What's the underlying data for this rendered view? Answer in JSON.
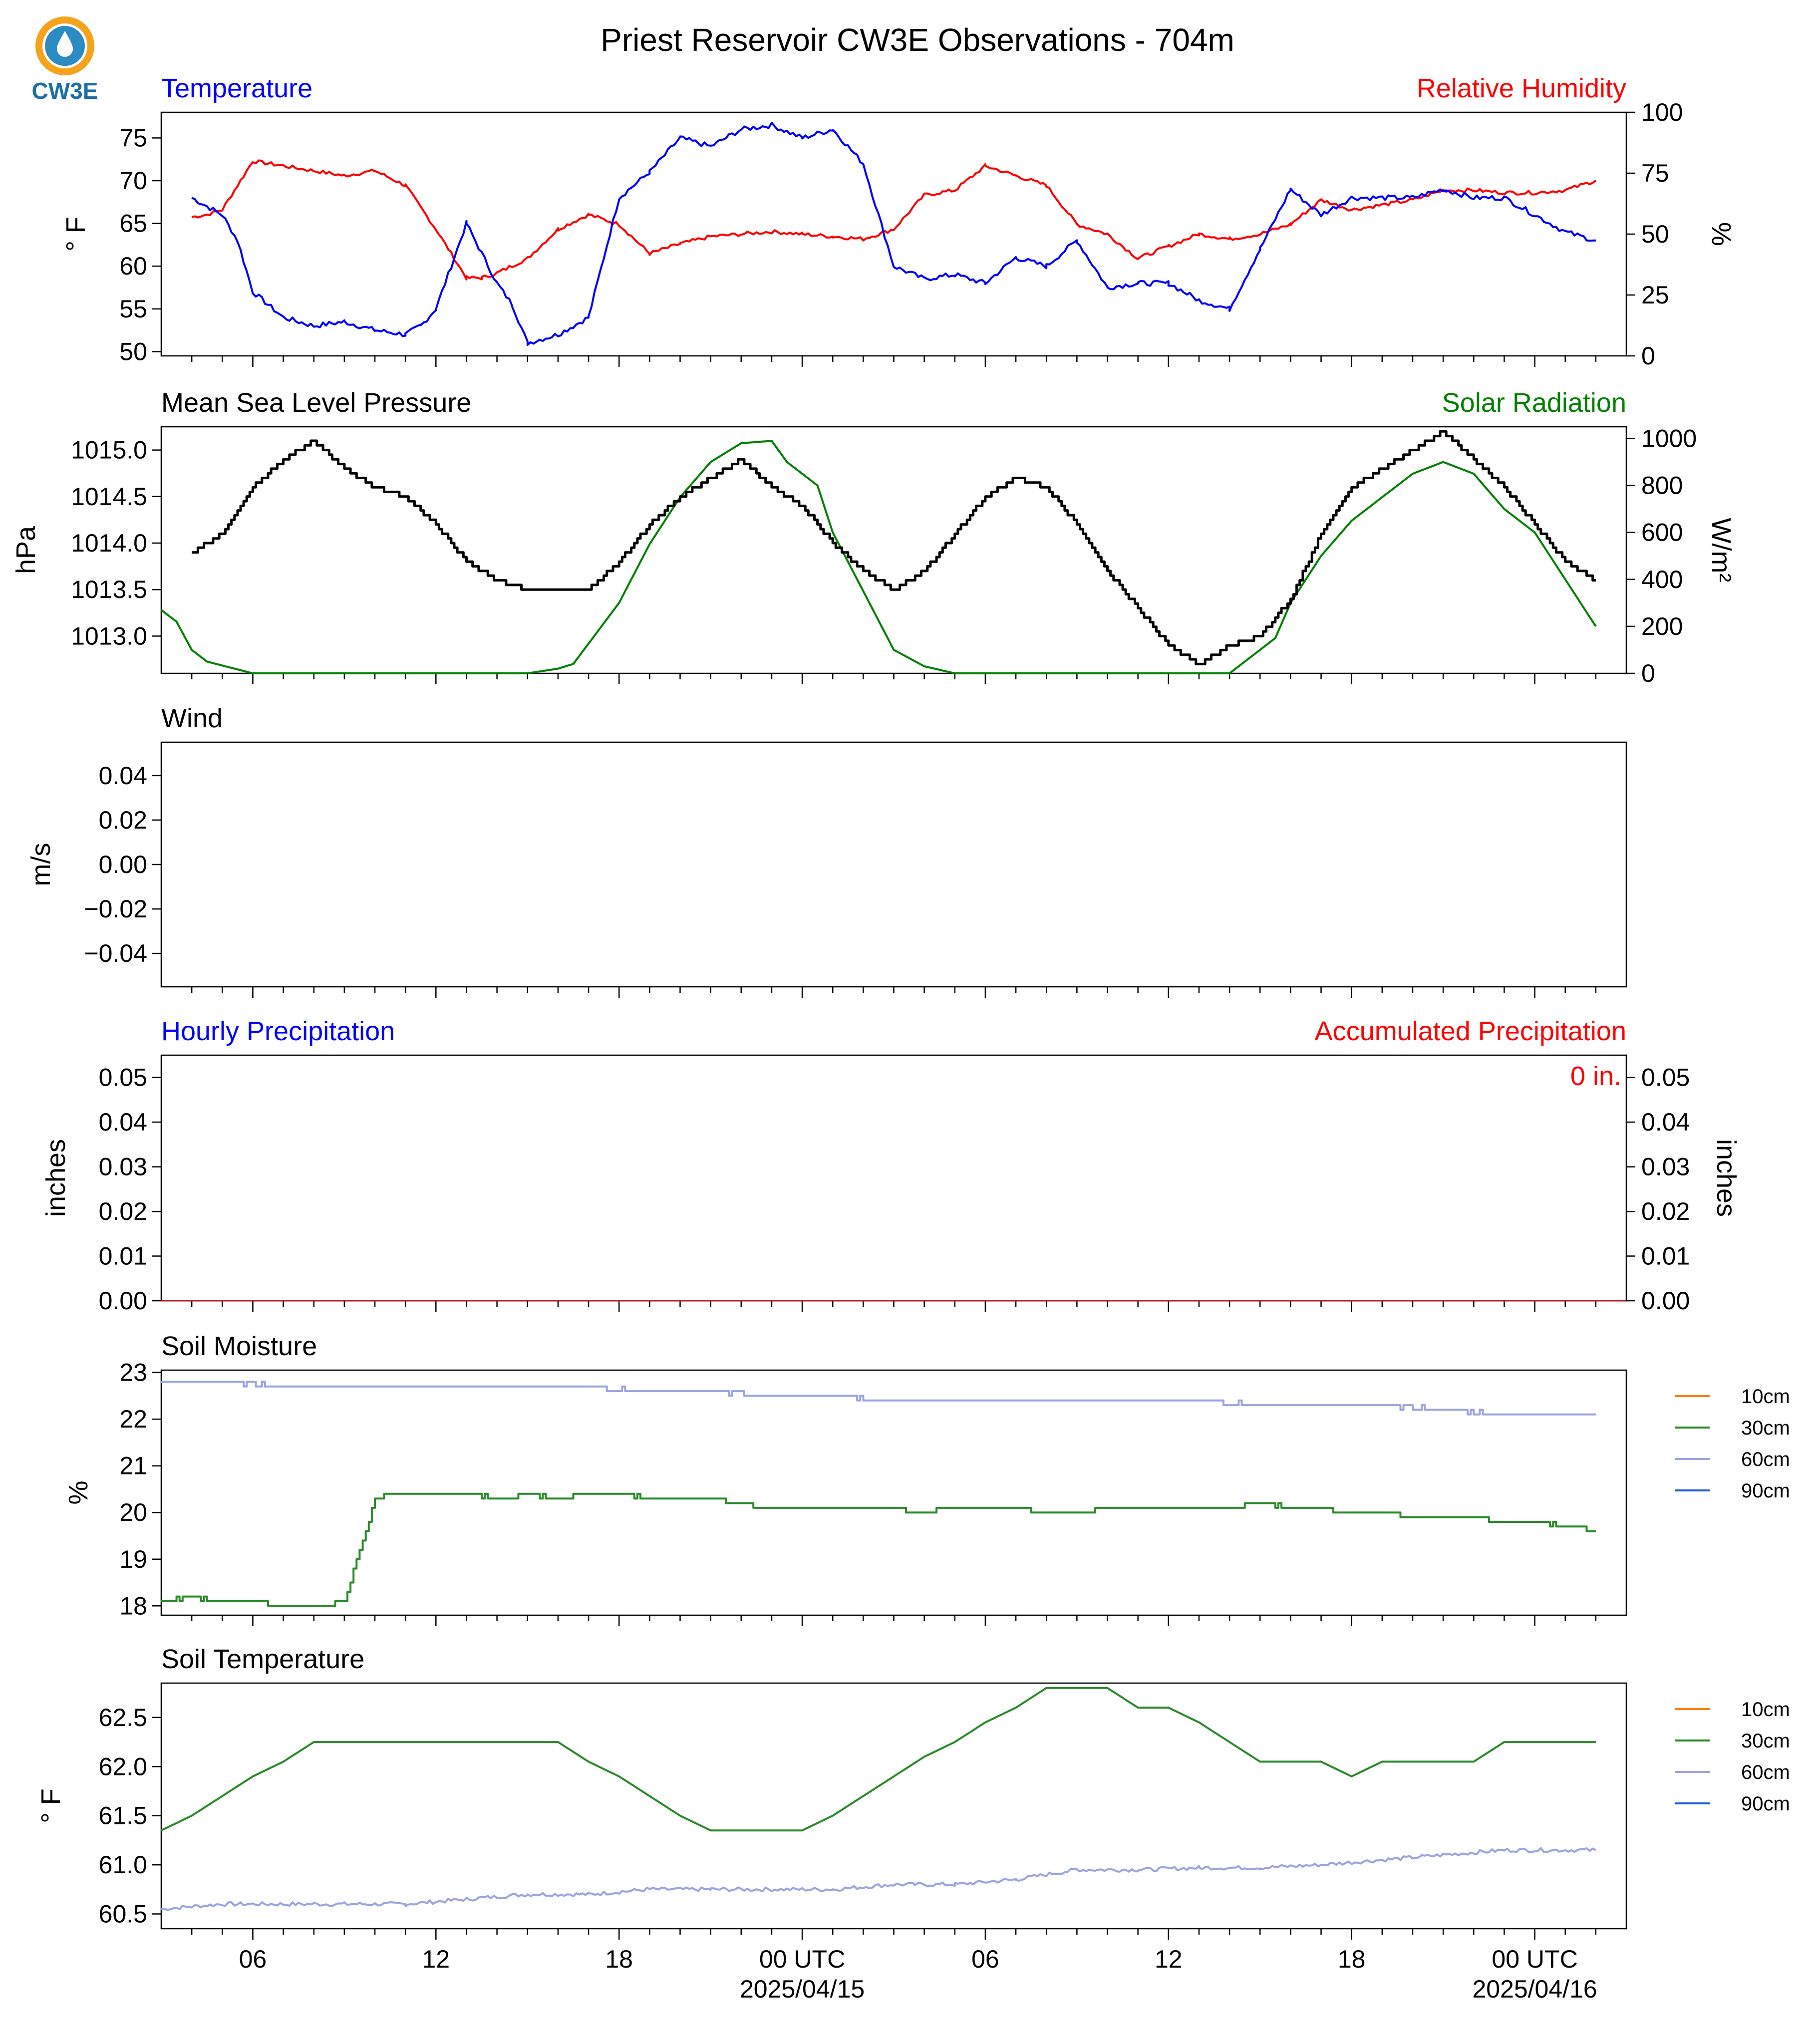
{
  "title": "Priest Reservoir CW3E Observations - 704m",
  "logo": {
    "text": "CW3E",
    "colors": {
      "ring": "#f7a21b",
      "drop": "#1f7fb8",
      "text": "#1b6fa8"
    }
  },
  "x_axis": {
    "range_hours": [
      -21,
      27
    ],
    "ticks": [
      {
        "h": -18,
        "label": "06",
        "sub": ""
      },
      {
        "h": -12,
        "label": "12",
        "sub": ""
      },
      {
        "h": -6,
        "label": "18",
        "sub": ""
      },
      {
        "h": 0,
        "label": "00 UTC",
        "sub": "2025/04/15"
      },
      {
        "h": 6,
        "label": "06",
        "sub": ""
      },
      {
        "h": 12,
        "label": "12",
        "sub": ""
      },
      {
        "h": 18,
        "label": "18",
        "sub": ""
      },
      {
        "h": 24,
        "label": "00 UTC",
        "sub": "2025/04/16"
      }
    ]
  },
  "panels": {
    "temperature": {
      "left_title": "Temperature",
      "right_title": "Relative Humidity",
      "left_ylabel": "° F",
      "right_ylabel": "%",
      "left_ticks": [
        "50",
        "55",
        "60",
        "65",
        "70",
        "75"
      ],
      "right_ticks": [
        "0",
        "25",
        "50",
        "75",
        "100"
      ]
    },
    "pressure": {
      "left_title": "Mean Sea Level Pressure",
      "right_title": "Solar Radiation",
      "left_ylabel": "hPa",
      "right_ylabel": "W/m²",
      "left_ticks": [
        "1013.0",
        "1013.5",
        "1014.0",
        "1014.5",
        "1015.0"
      ],
      "right_ticks": [
        "0",
        "200",
        "400",
        "600",
        "800",
        "1000"
      ]
    },
    "wind": {
      "left_title": "Wind",
      "left_ylabel": "m/s",
      "left_ticks": [
        "−0.04",
        "−0.02",
        "0.00",
        "0.02",
        "0.04"
      ]
    },
    "precip": {
      "left_title": "Hourly Precipitation",
      "right_title": "Accumulated Precipitation",
      "left_ylabel": "inches",
      "right_ylabel": "inches",
      "left_ticks": [
        "0.00",
        "0.01",
        "0.02",
        "0.03",
        "0.04",
        "0.05"
      ],
      "right_ticks": [
        "0.00",
        "0.01",
        "0.02",
        "0.03",
        "0.04",
        "0.05"
      ],
      "total_label": "0 in."
    },
    "soil_moisture": {
      "left_title": "Soil Moisture",
      "left_ylabel": "%",
      "left_ticks": [
        "18",
        "19",
        "20",
        "21",
        "22",
        "23"
      ],
      "legend": [
        "10cm",
        "30cm",
        "60cm",
        "90cm"
      ]
    },
    "soil_temperature": {
      "left_title": "Soil Temperature",
      "left_ylabel": "° F",
      "left_ticks": [
        "60.5",
        "61.0",
        "61.5",
        "62.0",
        "62.5"
      ],
      "legend": [
        "10cm",
        "30cm",
        "60cm",
        "90cm"
      ]
    }
  },
  "colors": {
    "temperature": "#0000ff",
    "humidity": "#ff0000",
    "pressure": "#000000",
    "solar": "#008000",
    "cm10": "#ff7f0e",
    "cm30": "#2a8a2a",
    "cm60": "#9aa4e0",
    "cm90": "#1f5fd6"
  },
  "chart_data": [
    {
      "type": "line",
      "title": "Temperature / Relative Humidity",
      "xlabel": "",
      "ylim_left": [
        49.5,
        78
      ],
      "ylim_right": [
        0,
        100
      ],
      "series": [
        {
          "name": "Temperature",
          "axis": "left",
          "unit": "°F",
          "x": [
            -20,
            -19,
            -18.5,
            -18,
            -17,
            -16,
            -15,
            -14,
            -13,
            -12.5,
            -12,
            -11,
            -10,
            -9.5,
            -9,
            -8,
            -7,
            -6,
            -5,
            -4,
            -3,
            -2,
            -1,
            0,
            1,
            2,
            2.5,
            3,
            4,
            5,
            6,
            7,
            8,
            9,
            10,
            11,
            12,
            13,
            14,
            15,
            16,
            17,
            18,
            19,
            20,
            21,
            22,
            23,
            24,
            25,
            26
          ],
          "y": [
            68,
            66,
            63,
            57,
            54,
            53,
            53.5,
            52.5,
            52,
            53,
            55,
            65,
            58,
            55.5,
            51,
            52,
            54,
            68,
            71,
            75,
            74,
            76,
            76.5,
            75,
            76,
            72,
            66,
            60,
            58.5,
            59,
            58,
            61,
            60,
            63,
            57.5,
            58,
            58,
            56,
            55,
            62,
            69,
            66,
            68,
            68,
            68,
            69,
            68,
            68,
            66,
            64,
            63
          ]
        },
        {
          "name": "Relative Humidity",
          "axis": "right",
          "unit": "%",
          "x": [
            -20,
            -19.5,
            -19,
            -18,
            -17,
            -16,
            -15,
            -14,
            -13,
            -12,
            -11,
            -10.5,
            -10,
            -9,
            -8,
            -7,
            -6,
            -5,
            -4,
            -3,
            -2,
            -1,
            0,
            1,
            2,
            3,
            4,
            5,
            6,
            7,
            8,
            9,
            10,
            11,
            12,
            13,
            14,
            15,
            16,
            17,
            18,
            19,
            20,
            21,
            22,
            23,
            24,
            25,
            26
          ],
          "y": [
            57,
            58,
            60,
            80,
            78,
            76,
            74,
            76,
            70,
            52,
            32,
            32,
            34,
            40,
            52,
            58,
            54,
            42,
            46,
            49,
            50,
            51,
            50,
            49,
            48,
            52,
            66,
            68,
            78,
            74,
            70,
            54,
            50,
            40,
            45,
            50,
            48,
            50,
            54,
            64,
            60,
            62,
            64,
            68,
            68,
            67,
            67,
            68,
            72
          ]
        }
      ]
    },
    {
      "type": "line",
      "title": "Mean Sea Level Pressure / Solar Radiation",
      "xlabel": "",
      "ylim_left": [
        1012.6,
        1015.25
      ],
      "ylim_right": [
        0,
        1050
      ],
      "series": [
        {
          "name": "Mean Sea Level Pressure",
          "axis": "left",
          "unit": "hPa",
          "x": [
            -20,
            -19,
            -18,
            -17,
            -16,
            -15,
            -14,
            -13,
            -12,
            -11,
            -10,
            -9,
            -8,
            -7,
            -6,
            -5,
            -4,
            -3,
            -2,
            -1,
            0,
            1,
            2,
            3,
            4,
            5,
            6,
            7,
            8,
            9,
            10,
            11,
            12,
            13,
            14,
            15,
            16,
            17,
            18,
            19,
            20,
            21,
            22,
            23,
            24,
            25,
            26
          ],
          "y": [
            1013.9,
            1014.1,
            1014.6,
            1014.9,
            1015.1,
            1014.8,
            1014.6,
            1014.5,
            1014.2,
            1013.8,
            1013.6,
            1013.5,
            1013.5,
            1013.5,
            1013.8,
            1014.2,
            1014.5,
            1014.7,
            1014.9,
            1014.6,
            1014.4,
            1014.0,
            1013.7,
            1013.5,
            1013.7,
            1014.1,
            1014.5,
            1014.7,
            1014.6,
            1014.2,
            1013.7,
            1013.3,
            1012.9,
            1012.7,
            1012.9,
            1013.0,
            1013.4,
            1014.1,
            1014.6,
            1014.8,
            1015.0,
            1015.2,
            1014.9,
            1014.6,
            1014.2,
            1013.8,
            1013.6
          ]
        },
        {
          "name": "Solar Radiation",
          "axis": "right",
          "unit": "W/m²",
          "x": [
            -21,
            -20.5,
            -20,
            -19.5,
            -18,
            -15,
            -12,
            -9,
            -8,
            -7.5,
            -6,
            -5,
            -4,
            -3,
            -2,
            -1,
            -0.5,
            0,
            0.5,
            1,
            2,
            3,
            4,
            5,
            6,
            7,
            8,
            9,
            10,
            11,
            12,
            13,
            14,
            15,
            15.5,
            16,
            17,
            18,
            19,
            20,
            21,
            22,
            23,
            24,
            25,
            26
          ],
          "y": [
            270,
            220,
            100,
            50,
            0,
            0,
            0,
            0,
            20,
            40,
            300,
            550,
            750,
            900,
            980,
            990,
            900,
            850,
            800,
            600,
            350,
            100,
            30,
            0,
            0,
            0,
            0,
            0,
            0,
            0,
            0,
            0,
            0,
            100,
            150,
            300,
            500,
            650,
            750,
            850,
            900,
            850,
            700,
            600,
            400,
            200
          ]
        }
      ]
    },
    {
      "type": "line",
      "title": "Wind",
      "xlabel": "",
      "ylabel": "m/s",
      "ylim": [
        -0.055,
        0.055
      ],
      "series": []
    },
    {
      "type": "line",
      "title": "Hourly Precipitation / Accumulated Precipitation",
      "xlabel": "",
      "ylim": [
        0,
        0.055
      ],
      "series": [
        {
          "name": "Hourly Precipitation",
          "x": [
            -21,
            27
          ],
          "y": [
            0,
            0
          ]
        },
        {
          "name": "Accumulated Precipitation",
          "x": [
            -21,
            27
          ],
          "y": [
            0,
            0
          ]
        }
      ]
    },
    {
      "type": "line",
      "title": "Soil Moisture",
      "xlabel": "",
      "ylabel": "%",
      "ylim": [
        17.8,
        23.05
      ],
      "series": [
        {
          "name": "30cm",
          "x": [
            -21,
            -20,
            -19,
            -18,
            -17,
            -16,
            -15,
            -14,
            -13,
            -12,
            -11,
            -10,
            -9,
            -8,
            -7,
            -6,
            -5,
            -4,
            -3,
            -2,
            -1,
            0,
            1,
            2,
            3,
            4,
            5,
            6,
            7,
            8,
            9,
            10,
            11,
            12,
            13,
            14,
            15,
            16,
            17,
            18,
            19,
            20,
            21,
            22,
            23,
            24,
            25,
            26
          ],
          "y": [
            18.1,
            18.2,
            18.1,
            18.1,
            18.0,
            18.0,
            18.1,
            20.3,
            20.4,
            20.4,
            20.4,
            20.3,
            20.4,
            20.3,
            20.4,
            20.4,
            20.3,
            20.3,
            20.3,
            20.2,
            20.1,
            20.1,
            20.1,
            20.1,
            20.1,
            20.0,
            20.1,
            20.1,
            20.1,
            20.0,
            20.0,
            20.1,
            20.1,
            20.1,
            20.1,
            20.1,
            20.2,
            20.1,
            20.1,
            20.0,
            20.0,
            19.9,
            19.9,
            19.9,
            19.8,
            19.8,
            19.7,
            19.6
          ]
        },
        {
          "name": "60cm",
          "x": [
            -21,
            -19,
            -17,
            -15,
            -13,
            -11,
            -9,
            -7,
            -5,
            -3,
            -1,
            1,
            3,
            5,
            7,
            9,
            11,
            13,
            15,
            17,
            19,
            21,
            23,
            25,
            26
          ],
          "y": [
            22.8,
            22.8,
            22.7,
            22.7,
            22.7,
            22.7,
            22.7,
            22.7,
            22.6,
            22.6,
            22.5,
            22.5,
            22.4,
            22.4,
            22.4,
            22.4,
            22.4,
            22.4,
            22.3,
            22.3,
            22.3,
            22.2,
            22.1,
            22.1,
            22.1
          ]
        }
      ]
    },
    {
      "type": "line",
      "title": "Soil Temperature",
      "xlabel": "",
      "ylabel": "° F",
      "ylim": [
        60.35,
        62.85
      ],
      "series": [
        {
          "name": "30cm",
          "x": [
            -21,
            -20,
            -19,
            -18,
            -17,
            -16,
            -15,
            -14,
            -13,
            -12,
            -11,
            -10,
            -9,
            -8,
            -7,
            -6,
            -5,
            -4,
            -3,
            -2,
            -1,
            0,
            1,
            2,
            3,
            4,
            5,
            6,
            7,
            8,
            9,
            10,
            11,
            12,
            13,
            14,
            15,
            16,
            17,
            18,
            19,
            20,
            21,
            22,
            23,
            24,
            25,
            26
          ],
          "y": [
            61.35,
            61.5,
            61.7,
            61.9,
            62.05,
            62.25,
            62.25,
            62.25,
            62.25,
            62.25,
            62.25,
            62.25,
            62.25,
            62.25,
            62.05,
            61.9,
            61.7,
            61.5,
            61.35,
            61.35,
            61.35,
            61.35,
            61.5,
            61.7,
            61.9,
            62.1,
            62.25,
            62.45,
            62.6,
            62.8,
            62.8,
            62.8,
            62.6,
            62.6,
            62.45,
            62.25,
            62.05,
            62.05,
            62.05,
            61.9,
            62.05,
            62.05,
            62.05,
            62.05,
            62.25,
            62.25,
            62.25,
            62.25
          ]
        },
        {
          "name": "60cm",
          "x": [
            -21,
            -19,
            -17,
            -15,
            -13,
            -11,
            -9,
            -7,
            -5,
            -3,
            -1,
            1,
            3,
            5,
            7,
            9,
            11,
            13,
            15,
            17,
            19,
            21,
            23,
            25,
            26
          ],
          "y": [
            60.55,
            60.6,
            60.6,
            60.6,
            60.6,
            60.65,
            60.7,
            60.7,
            60.75,
            60.75,
            60.75,
            60.75,
            60.8,
            60.8,
            60.85,
            60.95,
            60.95,
            60.97,
            60.97,
            61.0,
            61.05,
            61.1,
            61.15,
            61.15,
            61.15
          ]
        }
      ]
    }
  ]
}
